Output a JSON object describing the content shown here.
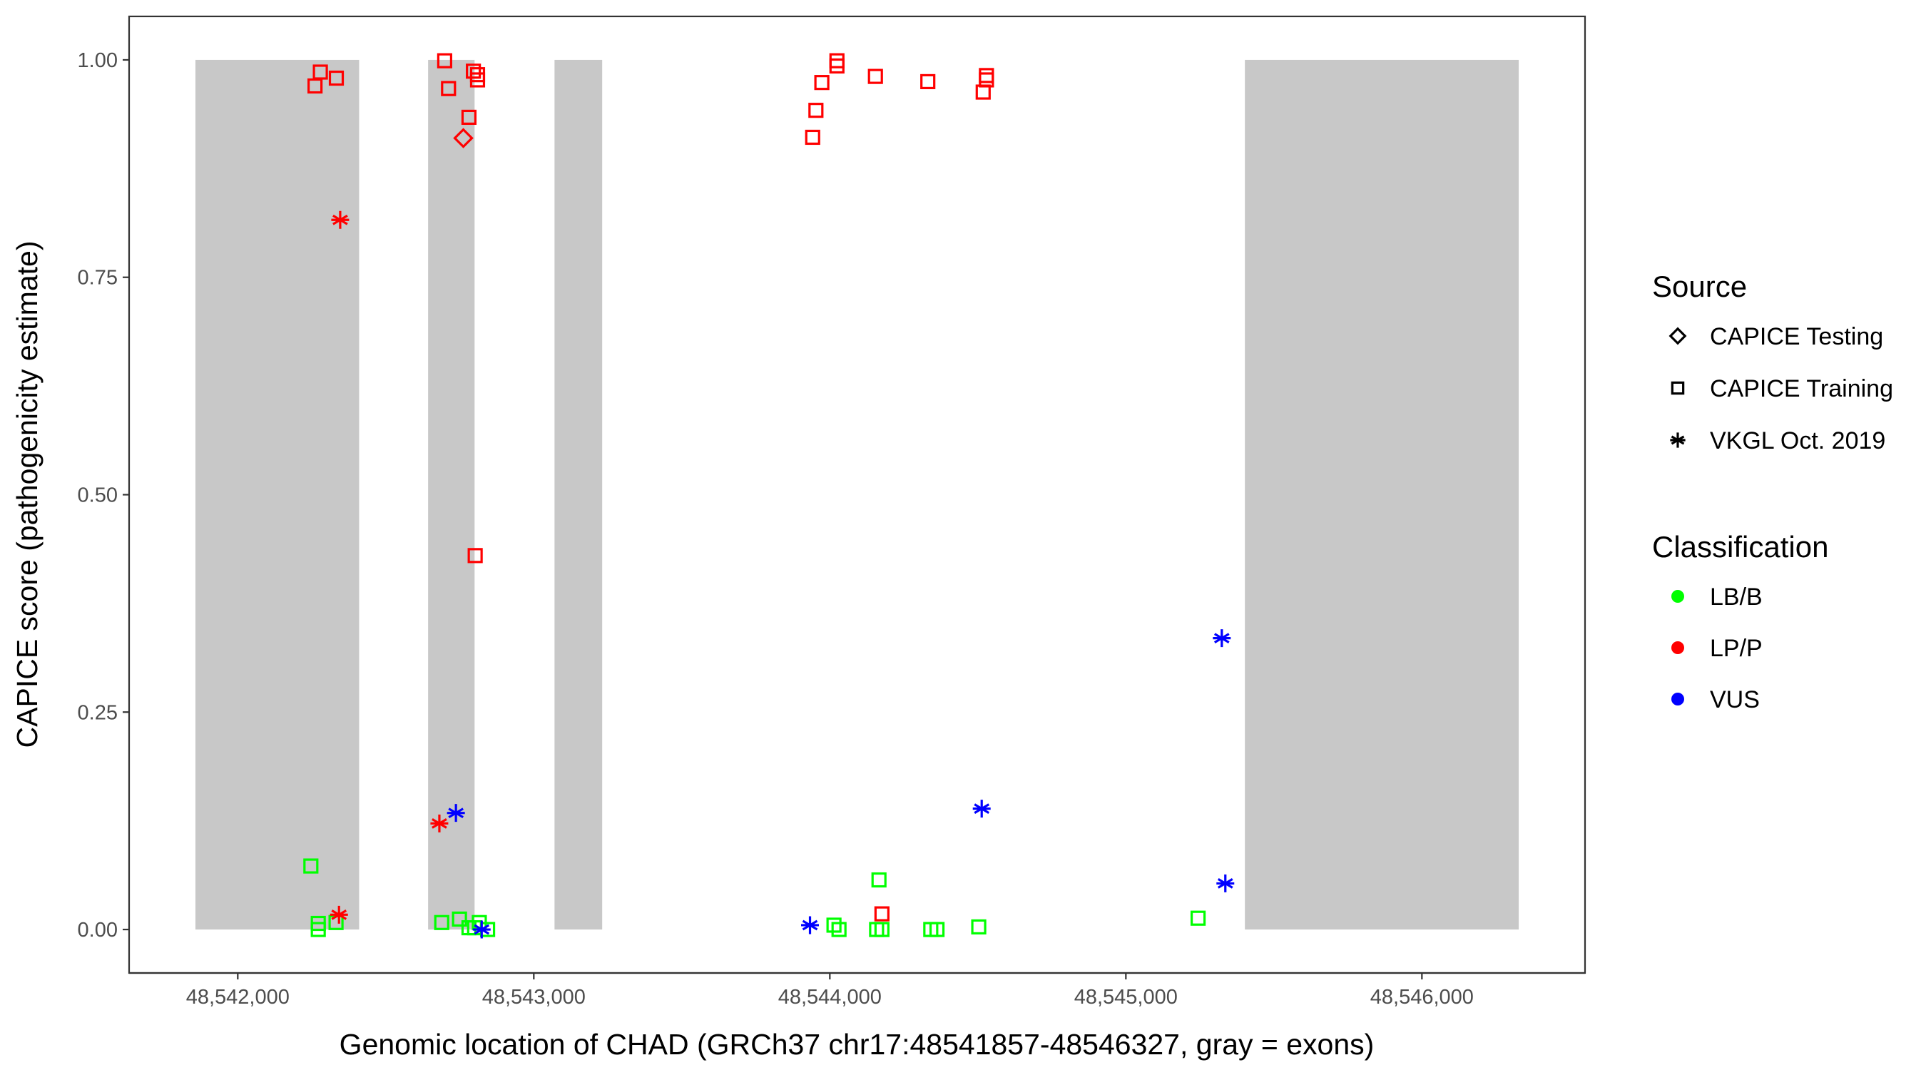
{
  "chart_data": {
    "type": "scatter",
    "title": "",
    "xlabel": "Genomic location of CHAD (GRCh37 chr17:48541857-48546327, gray = exons)",
    "ylabel": "CAPICE score (pathogenicity estimate)",
    "xlim": [
      48541633,
      48546551
    ],
    "ylim": [
      -0.05,
      1.05
    ],
    "grid": false,
    "x_ticks": [
      48542000,
      48543000,
      48544000,
      48545000,
      48546000
    ],
    "x_tick_labels": [
      "48,542,000",
      "48,543,000",
      "48,544,000",
      "48,545,000",
      "48,546,000"
    ],
    "y_ticks": [
      0,
      0.25,
      0.5,
      0.75,
      1
    ],
    "y_tick_labels": [
      "0.00",
      "0.25",
      "0.50",
      "0.75",
      "1.00"
    ],
    "exons": [
      [
        48541857,
        48542410
      ],
      [
        48542643,
        48542800
      ],
      [
        48543070,
        48543231
      ],
      [
        48545402,
        48546327
      ]
    ],
    "exon_color": "#c8c8c8",
    "legend_placement": "right",
    "legend": {
      "source_title": "Source",
      "sources": [
        {
          "key": "testing",
          "label": "CAPICE Testing",
          "shape": "diamond"
        },
        {
          "key": "training",
          "label": "CAPICE Training",
          "shape": "square"
        },
        {
          "key": "vkgl",
          "label": "VKGL Oct. 2019",
          "shape": "asterisk"
        }
      ],
      "class_title": "Classification",
      "classes": [
        {
          "key": "LB/B",
          "label": "LB/B",
          "color": "#00ff00"
        },
        {
          "key": "LP/P",
          "label": "LP/P",
          "color": "#ff0000"
        },
        {
          "key": "VUS",
          "label": "VUS",
          "color": "#0000ff"
        }
      ]
    },
    "points": [
      {
        "x": 48542279,
        "y": 0.986,
        "source": "training",
        "cls": "LP/P"
      },
      {
        "x": 48542333,
        "y": 0.979,
        "source": "training",
        "cls": "LP/P"
      },
      {
        "x": 48542261,
        "y": 0.97,
        "source": "training",
        "cls": "LP/P"
      },
      {
        "x": 48542346,
        "y": 0.816,
        "source": "vkgl",
        "cls": "LP/P"
      },
      {
        "x": 48542699,
        "y": 0.999,
        "source": "training",
        "cls": "LP/P"
      },
      {
        "x": 48542796,
        "y": 0.987,
        "source": "training",
        "cls": "LP/P"
      },
      {
        "x": 48542810,
        "y": 0.983,
        "source": "training",
        "cls": "LP/P"
      },
      {
        "x": 48542810,
        "y": 0.977,
        "source": "training",
        "cls": "LP/P"
      },
      {
        "x": 48542712,
        "y": 0.967,
        "source": "training",
        "cls": "LP/P"
      },
      {
        "x": 48542781,
        "y": 0.934,
        "source": "training",
        "cls": "LP/P"
      },
      {
        "x": 48542762,
        "y": 0.91,
        "source": "testing",
        "cls": "LP/P"
      },
      {
        "x": 48542802,
        "y": 0.43,
        "source": "training",
        "cls": "LP/P"
      },
      {
        "x": 48542247,
        "y": 0.073,
        "source": "training",
        "cls": "LB/B"
      },
      {
        "x": 48542272,
        "y": 0.007,
        "source": "training",
        "cls": "LB/B"
      },
      {
        "x": 48542272,
        "y": 0.0,
        "source": "training",
        "cls": "LB/B"
      },
      {
        "x": 48542332,
        "y": 0.008,
        "source": "training",
        "cls": "LB/B"
      },
      {
        "x": 48542342,
        "y": 0.017,
        "source": "vkgl",
        "cls": "LP/P"
      },
      {
        "x": 48542681,
        "y": 0.122,
        "source": "vkgl",
        "cls": "LP/P"
      },
      {
        "x": 48542737,
        "y": 0.134,
        "source": "vkgl",
        "cls": "VUS"
      },
      {
        "x": 48542689,
        "y": 0.008,
        "source": "training",
        "cls": "LB/B"
      },
      {
        "x": 48542749,
        "y": 0.012,
        "source": "training",
        "cls": "LB/B"
      },
      {
        "x": 48542781,
        "y": 0.002,
        "source": "training",
        "cls": "LB/B"
      },
      {
        "x": 48542800,
        "y": 0.002,
        "source": "training",
        "cls": "LB/B"
      },
      {
        "x": 48542816,
        "y": 0.008,
        "source": "training",
        "cls": "LB/B"
      },
      {
        "x": 48542844,
        "y": 0.0,
        "source": "training",
        "cls": "LB/B"
      },
      {
        "x": 48542824,
        "y": 0.0,
        "source": "vkgl",
        "cls": "VUS"
      },
      {
        "x": 48544024,
        "y": 0.999,
        "source": "training",
        "cls": "LP/P"
      },
      {
        "x": 48544024,
        "y": 0.993,
        "source": "training",
        "cls": "LP/P"
      },
      {
        "x": 48543973,
        "y": 0.974,
        "source": "training",
        "cls": "LP/P"
      },
      {
        "x": 48544154,
        "y": 0.981,
        "source": "training",
        "cls": "LP/P"
      },
      {
        "x": 48544331,
        "y": 0.975,
        "source": "training",
        "cls": "LP/P"
      },
      {
        "x": 48544529,
        "y": 0.982,
        "source": "training",
        "cls": "LP/P"
      },
      {
        "x": 48544529,
        "y": 0.977,
        "source": "training",
        "cls": "LP/P"
      },
      {
        "x": 48544518,
        "y": 0.963,
        "source": "training",
        "cls": "LP/P"
      },
      {
        "x": 48543953,
        "y": 0.942,
        "source": "training",
        "cls": "LP/P"
      },
      {
        "x": 48543942,
        "y": 0.911,
        "source": "training",
        "cls": "LP/P"
      },
      {
        "x": 48543933,
        "y": 0.005,
        "source": "vkgl",
        "cls": "VUS"
      },
      {
        "x": 48544014,
        "y": 0.005,
        "source": "training",
        "cls": "LB/B"
      },
      {
        "x": 48544031,
        "y": 0.0,
        "source": "training",
        "cls": "LB/B"
      },
      {
        "x": 48544166,
        "y": 0.057,
        "source": "training",
        "cls": "LB/B"
      },
      {
        "x": 48544176,
        "y": 0.018,
        "source": "training",
        "cls": "LP/P"
      },
      {
        "x": 48544158,
        "y": 0.0,
        "source": "training",
        "cls": "LB/B"
      },
      {
        "x": 48544176,
        "y": 0.0,
        "source": "training",
        "cls": "LB/B"
      },
      {
        "x": 48544341,
        "y": 0.0,
        "source": "training",
        "cls": "LB/B"
      },
      {
        "x": 48544362,
        "y": 0.0,
        "source": "training",
        "cls": "LB/B"
      },
      {
        "x": 48544503,
        "y": 0.003,
        "source": "training",
        "cls": "LB/B"
      },
      {
        "x": 48544513,
        "y": 0.139,
        "source": "vkgl",
        "cls": "VUS"
      },
      {
        "x": 48545324,
        "y": 0.335,
        "source": "vkgl",
        "cls": "VUS"
      },
      {
        "x": 48545336,
        "y": 0.053,
        "source": "vkgl",
        "cls": "VUS"
      },
      {
        "x": 48545244,
        "y": 0.013,
        "source": "training",
        "cls": "LB/B"
      }
    ]
  }
}
